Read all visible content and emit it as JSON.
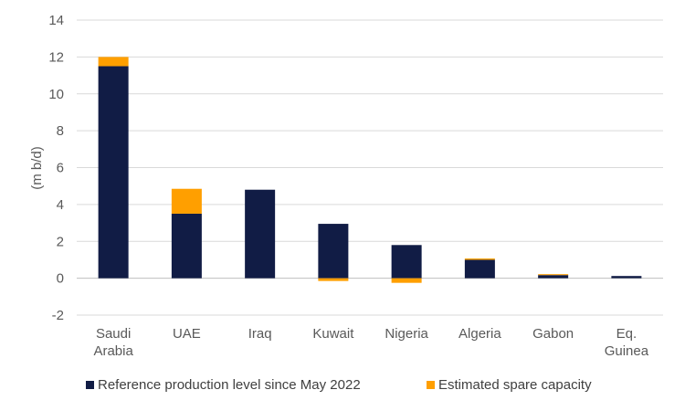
{
  "chart_data": {
    "type": "bar",
    "stacked": true,
    "title": "",
    "xlabel": "",
    "ylabel": "(m b/d)",
    "ylim": [
      -2,
      14
    ],
    "yticks": [
      -2,
      0,
      2,
      4,
      6,
      8,
      10,
      12,
      14
    ],
    "grid": true,
    "legend_position": "bottom",
    "categories": [
      [
        "Saudi",
        "Arabia"
      ],
      [
        "UAE"
      ],
      [
        "Iraq"
      ],
      [
        "Kuwait"
      ],
      [
        "Nigeria"
      ],
      [
        "Algeria"
      ],
      [
        "Gabon"
      ],
      [
        "Eq.",
        "Guinea"
      ]
    ],
    "series": [
      {
        "name": "Reference production level since May 2022",
        "color": "#111c45",
        "values": [
          11.5,
          3.5,
          4.8,
          2.95,
          1.8,
          1.0,
          0.17,
          0.12
        ]
      },
      {
        "name": "Estimated spare capacity",
        "color": "#ff9f00",
        "values": [
          0.5,
          1.35,
          0.0,
          -0.15,
          -0.25,
          0.07,
          0.05,
          0.0
        ]
      }
    ]
  }
}
